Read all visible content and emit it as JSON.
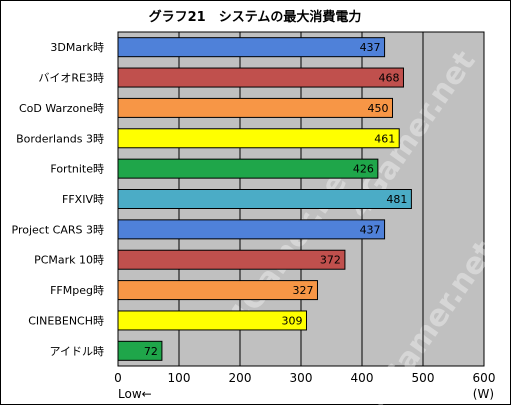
{
  "chart_data": {
    "type": "bar",
    "orientation": "horizontal",
    "title": "グラフ21　システムの最大消費電力",
    "categories": [
      "3DMark時",
      "バイオRE3時",
      "CoD Warzone時",
      "Borderlands 3時",
      "Fortnite時",
      "FFXIV時",
      "Project CARS 3時",
      "PCMark 10時",
      "FFMpeg時",
      "CINEBENCH時",
      "アイドル時"
    ],
    "values": [
      437,
      468,
      450,
      461,
      426,
      481,
      437,
      372,
      327,
      309,
      72
    ],
    "bar_colors": [
      "#4f81d9",
      "#c0504d",
      "#f79646",
      "#ffff00",
      "#1fa64a",
      "#4bacc6",
      "#4f81d9",
      "#c0504d",
      "#f79646",
      "#ffff00",
      "#1fa64a"
    ],
    "x_ticks": [
      0,
      100,
      200,
      300,
      400,
      500,
      600
    ],
    "xlim": [
      0,
      600
    ],
    "xlabel_left": "Low←",
    "unit_label": "(W)",
    "grid": true,
    "plot_background": "#c0c0c0",
    "watermark": "4Gamer.net"
  }
}
